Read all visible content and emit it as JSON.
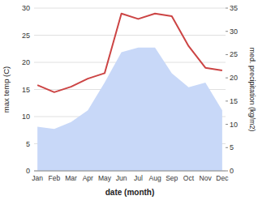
{
  "chart_data": {
    "type": "line",
    "xlabel": "date (month)",
    "ylabel": "max temp (C)",
    "y2label": "med. precipitation (kg/m2)",
    "categories": [
      "Jan",
      "Feb",
      "Mar",
      "Apr",
      "May",
      "Jun",
      "Jul",
      "Aug",
      "Sep",
      "Oct",
      "Nov",
      "Dec"
    ],
    "series": [
      {
        "type": "area",
        "axis": "y2",
        "color": "#c8d8f8",
        "values": [
          9.5,
          9.0,
          10.5,
          13.0,
          19.0,
          25.5,
          26.5,
          26.5,
          21.0,
          18.0,
          19.0,
          13.0
        ]
      },
      {
        "type": "line",
        "color": "#cc4444",
        "values": [
          15.8,
          14.5,
          15.5,
          17.0,
          18.0,
          29.0,
          28.0,
          29.0,
          28.5,
          23.0,
          19.0,
          18.5
        ]
      }
    ],
    "ylim": [
      0,
      30
    ],
    "yticks": [
      0,
      5,
      10,
      15,
      20,
      25,
      30
    ],
    "y2lim": [
      0,
      35
    ],
    "y2ticks": [
      0,
      5,
      10,
      15,
      20,
      25,
      30,
      35
    ],
    "grid": true
  }
}
